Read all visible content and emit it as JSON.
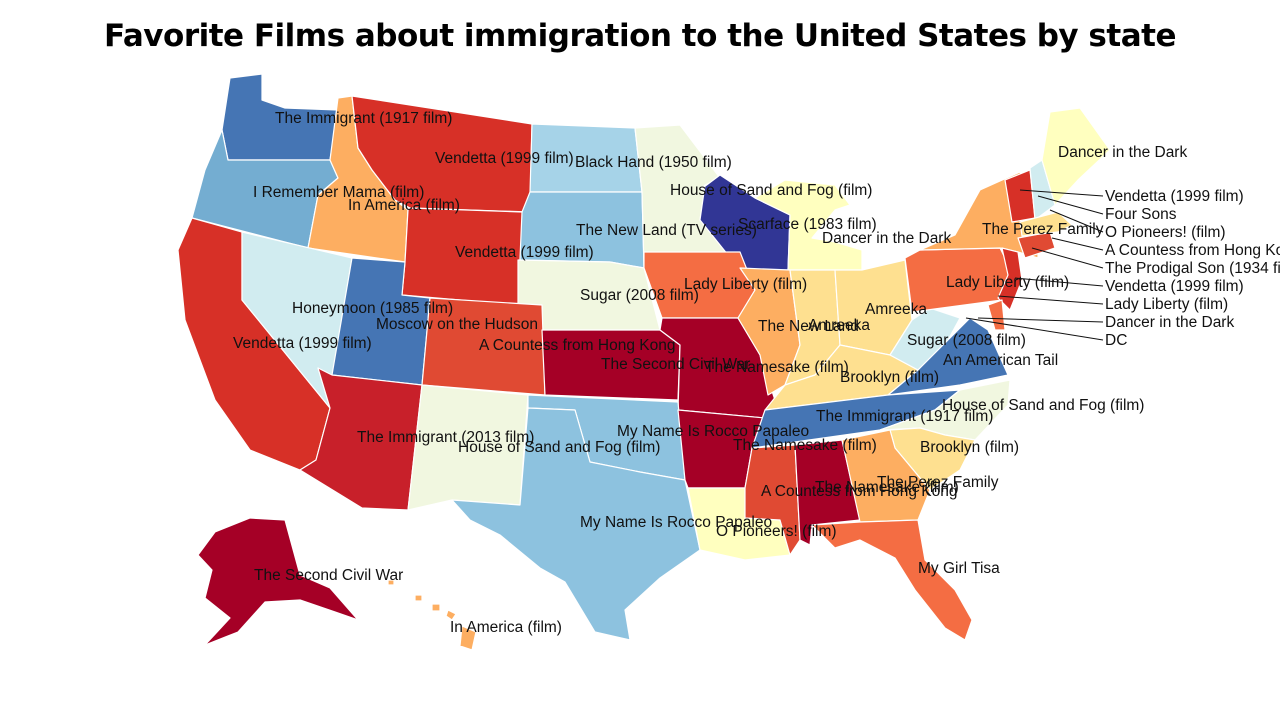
{
  "title": "Favorite Films about immigration to the United States by state",
  "colors": {
    "dark_red": "#a50026",
    "crimson": "#c8202a",
    "red": "#d73027",
    "red_orange": "#e04a33",
    "orange": "#f46d43",
    "light_orange": "#fdae61",
    "pale_yellow": "#fee090",
    "cream": "#ffffbf",
    "pale_green": "#f1f7e0",
    "pale_cyan": "#d1ecf0",
    "light_blue": "#a6d3e8",
    "sky_blue": "#8dc2df",
    "mid_blue": "#74add1",
    "steel_blue": "#4575b4",
    "navy": "#313695"
  },
  "states": {
    "WA": "The Immigrant (1917 film)",
    "OR": "I Remember Mama (film)",
    "ID": "In America (film)",
    "MT": "Vendetta (1999 film)",
    "ND": "Black Hand (1950 film)",
    "MN": "House of Sand and Fog (film)",
    "WI": "Scarface (1983 film)",
    "MI": "Dancer in the Dark",
    "ME": "Dancer in the Dark",
    "SD": "The New Land (TV series)",
    "WY": "Vendetta (1999 film)",
    "NE": "Sugar (2008 film)",
    "IA": "Lady Liberty (film)",
    "NV": "Honeymoon (1985 film)",
    "UT": "Moscow on the Hudson",
    "CA": "Vendetta (1999 film)",
    "CO": "A Countess from Hong Kong",
    "KS": "The Second Civil War",
    "MO": "The Namesake (film)",
    "IL": "The New Land",
    "IN": "Amreeka",
    "OH": "Amreeka",
    "WV": "Sugar (2008 film)",
    "KY": "Brooklyn (film)",
    "VA": "An American Tail",
    "NY": "The Perez Family",
    "PA": "Lady Liberty (film)",
    "AZ": "The Immigrant (2013 film)",
    "NM": "House of Sand and Fog (film)",
    "OK": "My Name Is Rocco Papaleo",
    "TX": "My Name Is Rocco Papaleo",
    "AR": "The Namesake (film)",
    "TN": "The Immigrant (1917 film)",
    "NC": "House of Sand and Fog (film)",
    "SC": "Brooklyn (film)",
    "MS": "A Countess from Hong Kong",
    "AL": "The Namesake (film)",
    "GA": "The Perez Family",
    "LA": "O Pioneers! (film)",
    "FL": "My Girl Tisa",
    "AK": "The Second Civil War",
    "HI": "In America (film)"
  },
  "callouts": {
    "VT": "Vendetta (1999 film)",
    "NH": "Four Sons",
    "MA": "O Pioneers! (film)",
    "RI": "A Countess from Hong Kong",
    "CT": "The Prodigal Son (1934 film)",
    "NJ": "Vendetta (1999 film)",
    "DE": "Lady Liberty (film)",
    "MD": "Dancer in the Dark",
    "DC": "DC"
  }
}
